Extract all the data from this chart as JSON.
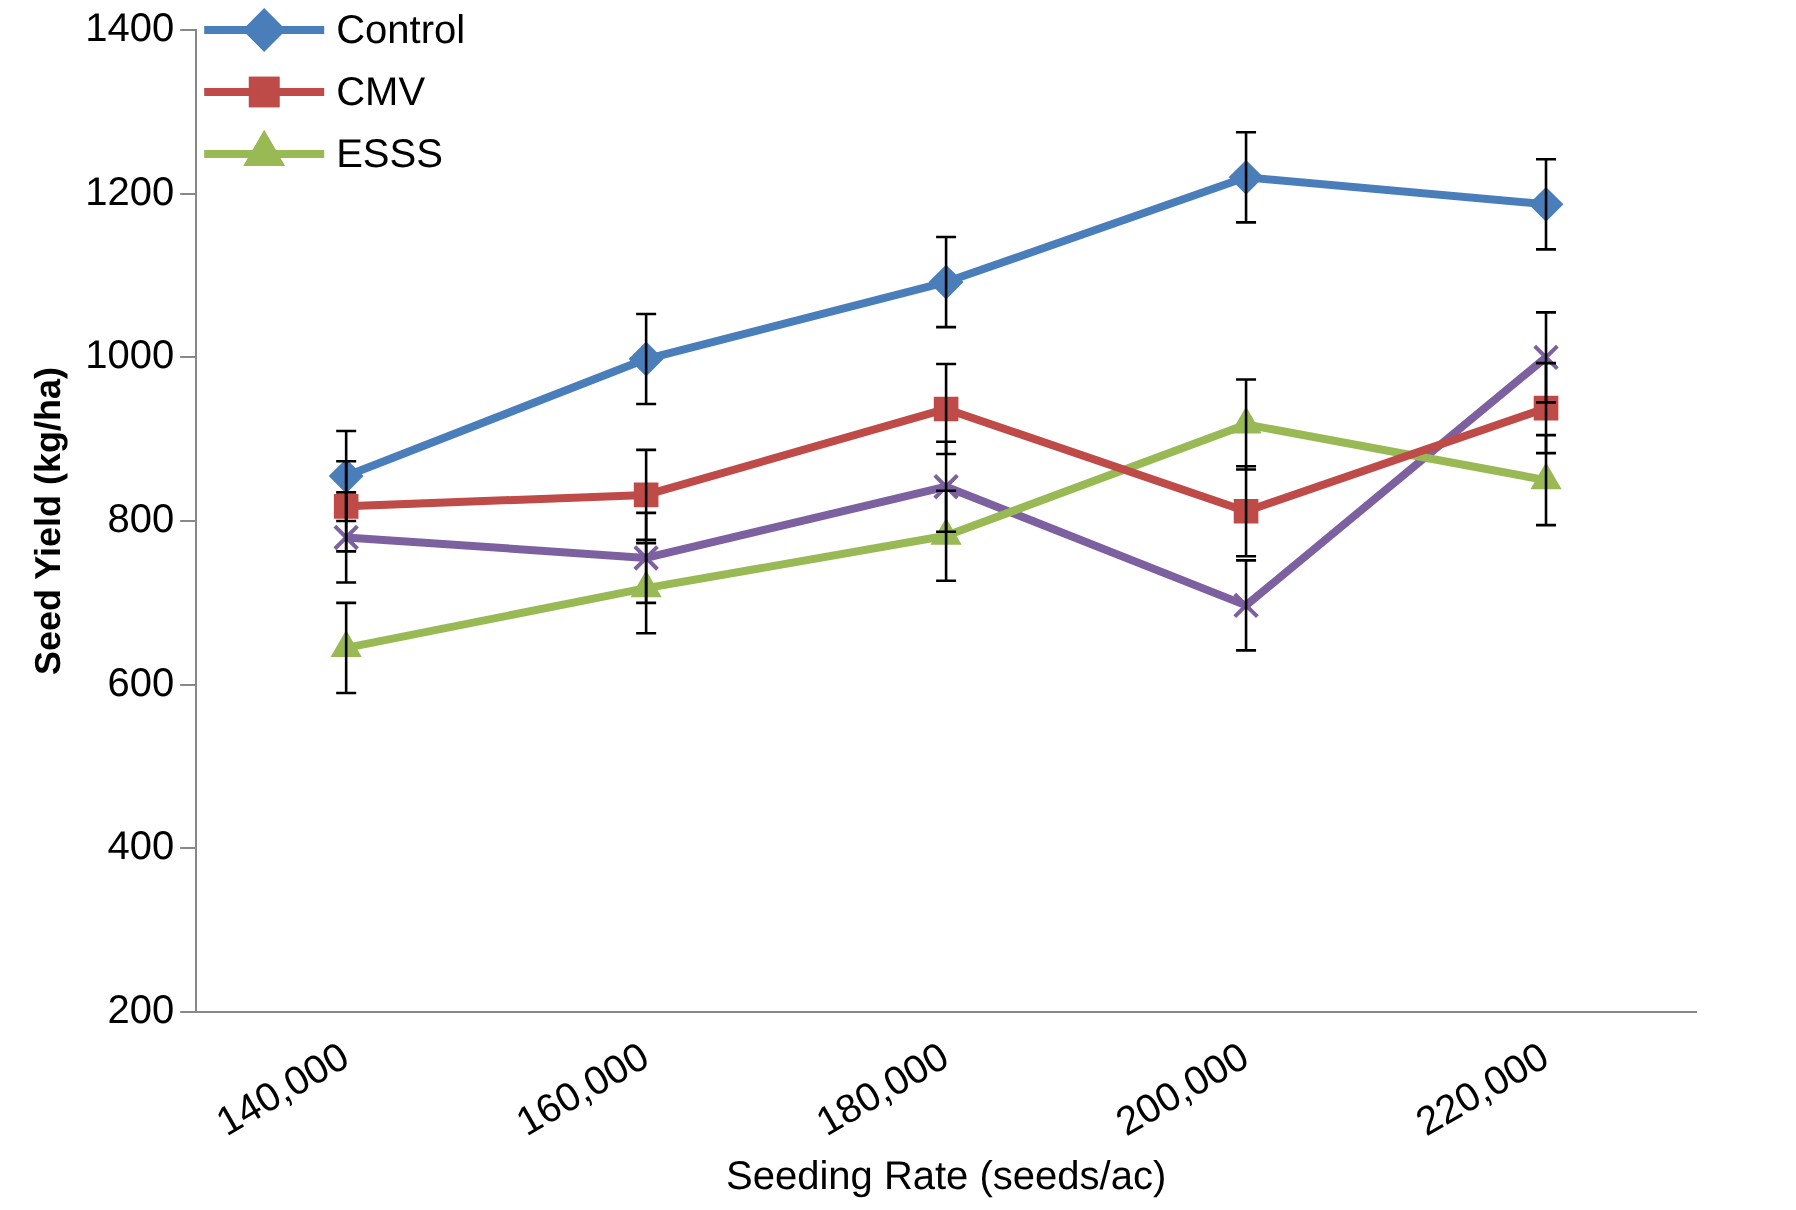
{
  "chart_data": {
    "type": "line",
    "xlabel": "Seeding Rate (seeds/ac)",
    "ylabel": "Seed Yield (kg/ha)",
    "categories": [
      "140,000",
      "160,000",
      "180,000",
      "200,000",
      "220,000"
    ],
    "ylim": [
      200,
      1400
    ],
    "yticks": [
      200,
      400,
      600,
      800,
      1000,
      1200,
      1400
    ],
    "grid": false,
    "legend": "top left",
    "series": [
      {
        "name": "Control",
        "color": "#4a7ebb",
        "marker": "diamond",
        "values": [
          855,
          998,
          1092,
          1220,
          1187
        ],
        "errors": [
          55,
          55,
          55,
          55,
          55
        ]
      },
      {
        "name": "CMV",
        "color": "#be4b48",
        "marker": "square",
        "values": [
          818,
          832,
          937,
          812,
          938
        ],
        "errors": [
          55,
          55,
          55,
          55,
          55
        ]
      },
      {
        "name": "ESSS",
        "color": "#98b954",
        "marker": "triangle",
        "values": [
          645,
          718,
          782,
          918,
          850
        ],
        "errors": [
          55,
          55,
          55,
          55,
          55
        ]
      },
      {
        "color": "#7d60a0",
        "marker": "cross",
        "values": [
          780,
          755,
          842,
          697,
          1000
        ],
        "errors": [
          55,
          55,
          55,
          55,
          55
        ]
      }
    ]
  }
}
